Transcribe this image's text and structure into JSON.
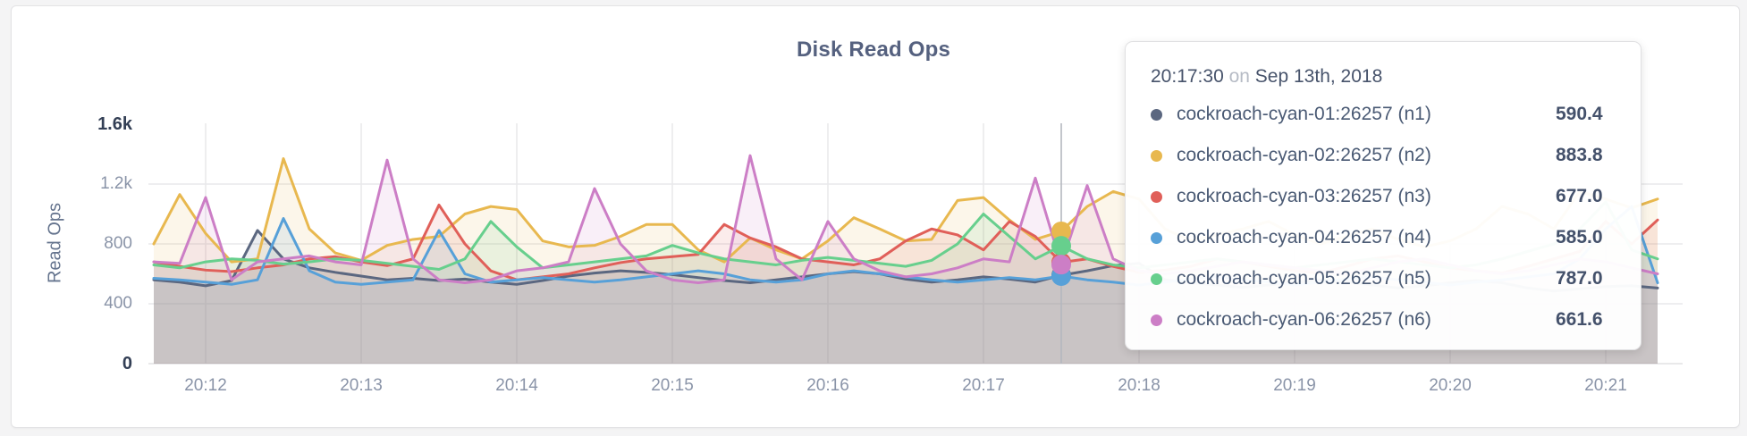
{
  "panel": {
    "title": "Disk Read Ops"
  },
  "chart_data": {
    "type": "area",
    "title": "Disk Read Ops",
    "xlabel": "",
    "ylabel": "Read Ops",
    "ylim": [
      0,
      1600
    ],
    "grid": true,
    "x_ticks": [
      "20:12",
      "20:13",
      "20:14",
      "20:15",
      "20:16",
      "20:17",
      "20:18",
      "20:19",
      "20:20",
      "20:21"
    ],
    "y_ticks": [
      {
        "label": "1.6k",
        "value": 1600,
        "emphasis": true,
        "gridline": false
      },
      {
        "label": "1.2k",
        "value": 1200,
        "emphasis": false,
        "gridline": true
      },
      {
        "label": "800",
        "value": 800,
        "emphasis": false,
        "gridline": true
      },
      {
        "label": "400",
        "value": 400,
        "emphasis": false,
        "gridline": true
      },
      {
        "label": "0",
        "value": 0,
        "emphasis": true,
        "gridline": false
      }
    ],
    "x_start": "20:11:40",
    "x_interval_seconds": 10,
    "hover_index": 35,
    "hover_time": "20:17:30",
    "series": [
      {
        "name": "cockroach-cyan-01:26257 (n1)",
        "color": "#5b6780",
        "values": [
          560,
          545,
          520,
          555,
          890,
          700,
          640,
          610,
          585,
          560,
          570,
          555,
          565,
          545,
          530,
          555,
          585,
          605,
          620,
          610,
          595,
          575,
          555,
          540,
          560,
          580,
          600,
          615,
          600,
          565,
          545,
          560,
          580,
          565,
          545,
          590.4,
          620,
          655,
          670,
          560,
          540,
          525,
          510,
          525,
          545,
          560,
          545,
          525,
          505,
          520,
          540,
          555,
          540,
          505,
          485,
          500,
          515,
          520,
          505
        ]
      },
      {
        "name": "cockroach-cyan-02:26257 (n2)",
        "color": "#e8b84f",
        "values": [
          800,
          1130,
          870,
          680,
          700,
          1370,
          900,
          740,
          690,
          790,
          830,
          850,
          1000,
          1050,
          1030,
          820,
          780,
          790,
          850,
          930,
          930,
          760,
          680,
          840,
          760,
          700,
          820,
          975,
          900,
          820,
          830,
          1090,
          1110,
          960,
          830,
          883.8,
          1050,
          1150,
          1100,
          900,
          820,
          860,
          900,
          950,
          860,
          800,
          850,
          900,
          830,
          780,
          820,
          900,
          1050,
          1000,
          900,
          1150,
          1100,
          1040,
          1100
        ]
      },
      {
        "name": "cockroach-cyan-03:26257 (n3)",
        "color": "#e05f59",
        "values": [
          680,
          650,
          625,
          615,
          640,
          660,
          700,
          715,
          680,
          655,
          700,
          1060,
          800,
          620,
          560,
          580,
          600,
          640,
          675,
          700,
          715,
          730,
          930,
          840,
          780,
          700,
          680,
          660,
          700,
          820,
          900,
          860,
          760,
          950,
          850,
          677,
          700,
          650,
          610,
          625,
          650,
          700,
          680,
          650,
          620,
          605,
          650,
          700,
          720,
          680,
          640,
          620,
          605,
          650,
          700,
          750,
          950,
          800,
          960
        ]
      },
      {
        "name": "cockroach-cyan-04:26257 (n4)",
        "color": "#57a0d8",
        "values": [
          570,
          560,
          545,
          530,
          560,
          970,
          620,
          545,
          530,
          545,
          560,
          890,
          600,
          545,
          560,
          575,
          560,
          545,
          560,
          580,
          600,
          620,
          600,
          560,
          545,
          560,
          600,
          620,
          600,
          580,
          560,
          545,
          560,
          575,
          560,
          585,
          560,
          545,
          525,
          545,
          565,
          580,
          560,
          545,
          525,
          545,
          565,
          580,
          560,
          545,
          525,
          545,
          560,
          580,
          600,
          700,
          900,
          1050,
          540
        ]
      },
      {
        "name": "cockroach-cyan-05:26257 (n5)",
        "color": "#67cf8d",
        "values": [
          660,
          640,
          680,
          700,
          690,
          665,
          680,
          700,
          690,
          670,
          650,
          630,
          700,
          950,
          780,
          640,
          660,
          680,
          700,
          720,
          790,
          740,
          700,
          680,
          660,
          690,
          710,
          690,
          670,
          650,
          690,
          800,
          1000,
          850,
          700,
          787,
          700,
          660,
          640,
          660,
          680,
          700,
          680,
          660,
          640,
          660,
          680,
          700,
          680,
          660,
          640,
          660,
          700,
          750,
          800,
          900,
          1080,
          760,
          700
        ]
      },
      {
        "name": "cockroach-cyan-06:26257 (n6)",
        "color": "#cc7ec6",
        "values": [
          680,
          670,
          1110,
          560,
          680,
          700,
          720,
          680,
          660,
          1360,
          700,
          560,
          540,
          560,
          620,
          640,
          680,
          1170,
          800,
          620,
          560,
          540,
          560,
          1390,
          700,
          560,
          950,
          700,
          620,
          580,
          600,
          640,
          700,
          680,
          1240,
          661.6,
          1190,
          700,
          620,
          600,
          620,
          650,
          680,
          660,
          640,
          620,
          600,
          640,
          680,
          700,
          660,
          620,
          600,
          620,
          660,
          700,
          680,
          640,
          600
        ]
      }
    ]
  },
  "tooltip": {
    "time": "20:17:30",
    "preposition": "on",
    "date": "Sep 13th, 2018",
    "rows": [
      {
        "label": "cockroach-cyan-01:26257 (n1)",
        "value": "590.4",
        "color": "#5b6780"
      },
      {
        "label": "cockroach-cyan-02:26257 (n2)",
        "value": "883.8",
        "color": "#e8b84f"
      },
      {
        "label": "cockroach-cyan-03:26257 (n3)",
        "value": "677.0",
        "color": "#e05f59"
      },
      {
        "label": "cockroach-cyan-04:26257 (n4)",
        "value": "585.0",
        "color": "#57a0d8"
      },
      {
        "label": "cockroach-cyan-05:26257 (n5)",
        "value": "787.0",
        "color": "#67cf8d"
      },
      {
        "label": "cockroach-cyan-06:26257 (n6)",
        "value": "661.6",
        "color": "#cc7ec6"
      }
    ],
    "hover_values": [
      590.4,
      883.8,
      677.0,
      585.0,
      787.0,
      661.6
    ]
  },
  "colors": {
    "page_background": "#f4f4f5",
    "card_background": "#ffffff",
    "gridline": "#e9e9eb",
    "hover_line": "#b4b8bf",
    "axis_text": "#8a94a8",
    "axis_text_emphasis": "#333f55",
    "title_text": "#55617f"
  }
}
